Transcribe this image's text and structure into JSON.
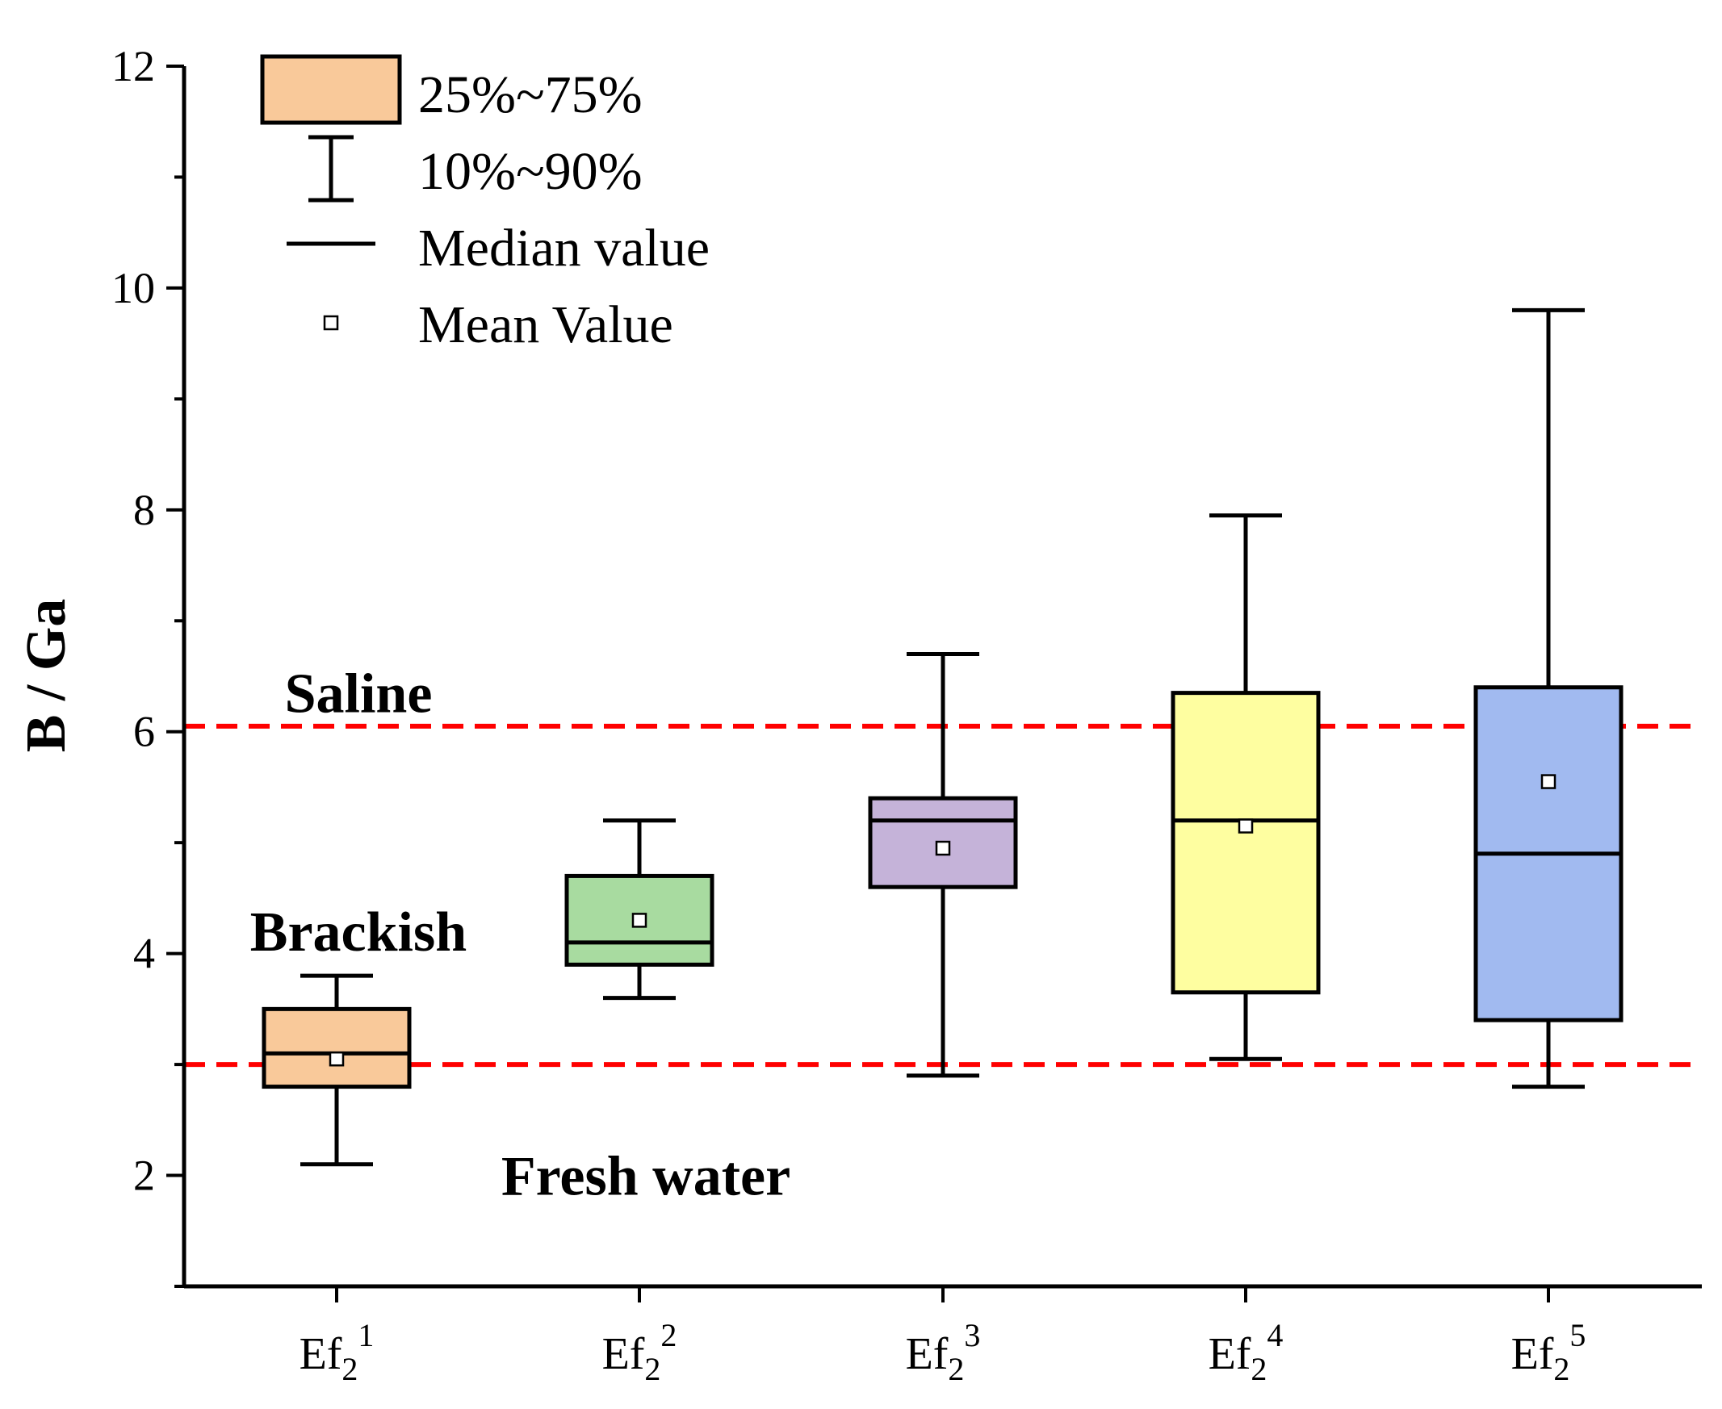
{
  "chart_data": {
    "type": "box",
    "ylabel": "B / Ga",
    "xlabel": "",
    "ylim": [
      1,
      12
    ],
    "yticks": [
      2,
      4,
      6,
      8,
      10,
      12
    ],
    "categories": [
      {
        "base": "Ef",
        "sub": "2",
        "sup": "1"
      },
      {
        "base": "Ef",
        "sub": "2",
        "sup": "2"
      },
      {
        "base": "Ef",
        "sub": "2",
        "sup": "3"
      },
      {
        "base": "Ef",
        "sub": "2",
        "sup": "4"
      },
      {
        "base": "Ef",
        "sub": "2",
        "sup": "5"
      }
    ],
    "boxes": [
      {
        "p10": 2.1,
        "q1": 2.8,
        "median": 3.1,
        "q3": 3.5,
        "p90": 3.8,
        "mean": 3.05,
        "color": "#f9c99a"
      },
      {
        "p10": 3.6,
        "q1": 3.9,
        "median": 4.1,
        "q3": 4.7,
        "p90": 5.2,
        "mean": 4.3,
        "color": "#a8dba0"
      },
      {
        "p10": 2.9,
        "q1": 4.6,
        "median": 5.2,
        "q3": 5.4,
        "p90": 6.7,
        "mean": 4.95,
        "color": "#c5b3d9"
      },
      {
        "p10": 3.05,
        "q1": 3.65,
        "median": 5.2,
        "q3": 6.35,
        "p90": 7.95,
        "mean": 5.15,
        "color": "#fefea0"
      },
      {
        "p10": 2.8,
        "q1": 3.4,
        "median": 4.9,
        "q3": 6.4,
        "p90": 9.8,
        "mean": 5.55,
        "color": "#a1baf0"
      }
    ],
    "reference_lines": [
      {
        "y": 6.05,
        "color": "#ff0000",
        "style": "dashed"
      },
      {
        "y": 3.0,
        "color": "#ff0000",
        "style": "dashed"
      }
    ],
    "zones": [
      {
        "label": "Saline",
        "y": 6.35,
        "x_category": 0
      },
      {
        "label": "Brackish",
        "y": 4.2,
        "x_category": 0
      },
      {
        "label": "Fresh water",
        "y": 2.0,
        "x_category": 1
      }
    ],
    "legend": {
      "position": "top-left",
      "entries": [
        {
          "kind": "box",
          "label": "25%~75%",
          "color": "#f9c99a"
        },
        {
          "kind": "whisker",
          "label": "10%~90%"
        },
        {
          "kind": "median",
          "label": "Median value"
        },
        {
          "kind": "mean",
          "label": "Mean Value"
        }
      ]
    }
  }
}
